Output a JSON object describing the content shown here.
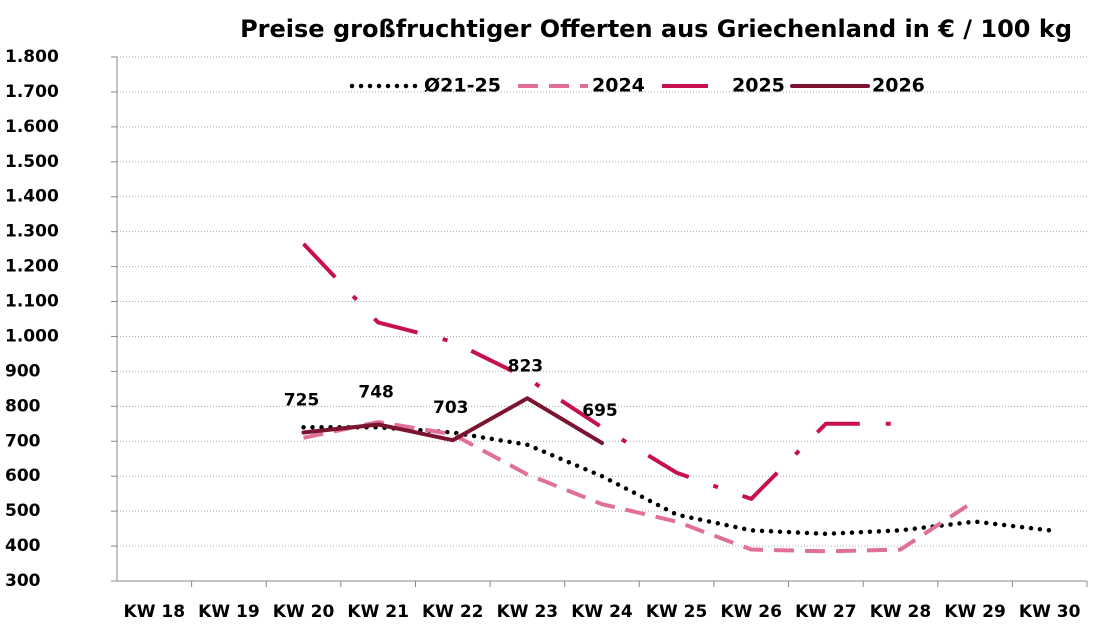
{
  "chart_data": {
    "type": "line",
    "title": "Preise großfruchtiger Offerten aus Griechenland in € / 100 kg",
    "categories": [
      "KW 18",
      "KW 19",
      "KW 20",
      "KW 21",
      "KW 22",
      "KW 23",
      "KW 24",
      "KW 25",
      "KW 26",
      "KW 27",
      "KW 28",
      "KW 29",
      "KW 30"
    ],
    "series": [
      {
        "name": "Ø21-25",
        "color": "#000000",
        "dash": "dotted",
        "values": [
          null,
          null,
          740,
          740,
          725,
          690,
          600,
          490,
          445,
          435,
          445,
          470,
          445
        ]
      },
      {
        "name": "2024",
        "color": "#e06f9a",
        "dash": "dashed",
        "values": [
          null,
          null,
          710,
          755,
          720,
          605,
          520,
          470,
          390,
          385,
          390,
          530,
          null
        ]
      },
      {
        "name": "2025",
        "color": "#c8104f",
        "dash": "dashdot",
        "values": [
          null,
          null,
          1265,
          1040,
          985,
          880,
          740,
          610,
          535,
          750,
          750,
          null,
          null
        ]
      },
      {
        "name": "2026",
        "color": "#7b1430",
        "dash": "solid",
        "values": [
          null,
          null,
          725,
          748,
          703,
          823,
          695,
          null,
          null,
          null,
          null,
          null,
          null
        ],
        "data_labels": true
      }
    ],
    "ylim": [
      300,
      1800
    ],
    "yticks": [
      300,
      400,
      500,
      600,
      700,
      800,
      900,
      {
        "value": 1000,
        "label": "1.000"
      },
      {
        "value": 1100,
        "label": "1.100"
      },
      {
        "value": 1200,
        "label": "1.200"
      },
      {
        "value": 1300,
        "label": "1.300"
      },
      {
        "value": 1400,
        "label": "1.400"
      },
      {
        "value": 1500,
        "label": "1.500"
      },
      {
        "value": 1600,
        "label": "1.600"
      },
      {
        "value": 1700,
        "label": "1.700"
      },
      {
        "value": 1800,
        "label": "1.800"
      }
    ],
    "grid": true,
    "legend": "top"
  }
}
